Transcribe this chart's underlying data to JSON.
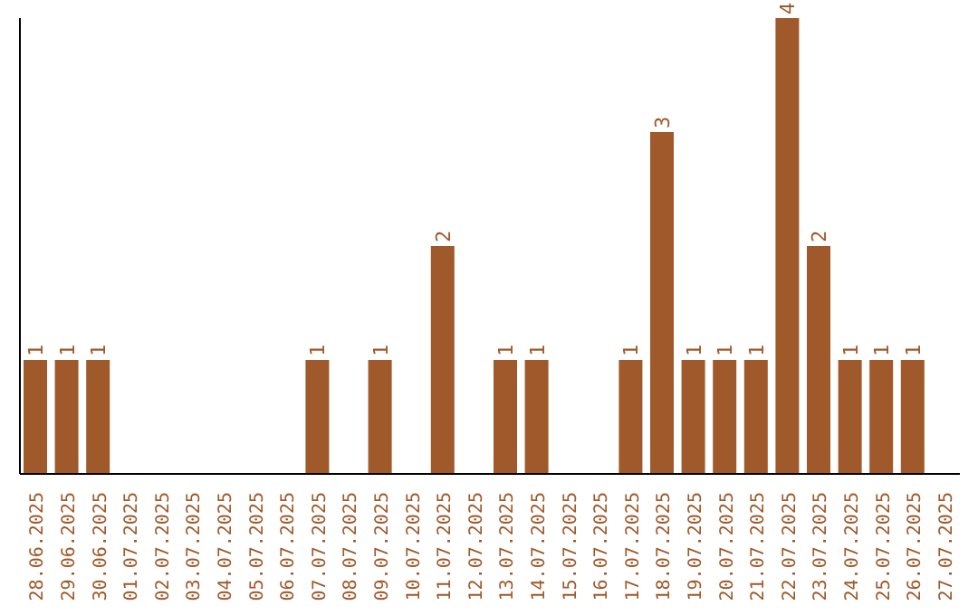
{
  "chart_data": {
    "type": "bar",
    "categories": [
      "28.06.2025",
      "29.06.2025",
      "30.06.2025",
      "01.07.2025",
      "02.07.2025",
      "03.07.2025",
      "04.07.2025",
      "05.07.2025",
      "06.07.2025",
      "07.07.2025",
      "08.07.2025",
      "09.07.2025",
      "10.07.2025",
      "11.07.2025",
      "12.07.2025",
      "13.07.2025",
      "14.07.2025",
      "15.07.2025",
      "16.07.2025",
      "17.07.2025",
      "18.07.2025",
      "19.07.2025",
      "20.07.2025",
      "21.07.2025",
      "22.07.2025",
      "23.07.2025",
      "24.07.2025",
      "25.07.2025",
      "26.07.2025",
      "27.07.2025"
    ],
    "values": [
      1,
      1,
      1,
      0,
      0,
      0,
      0,
      0,
      0,
      1,
      0,
      1,
      0,
      2,
      0,
      1,
      1,
      0,
      0,
      1,
      3,
      1,
      1,
      1,
      4,
      2,
      1,
      1,
      1,
      0
    ],
    "value_labels": [
      "1",
      "1",
      "1",
      null,
      null,
      null,
      null,
      null,
      null,
      "1",
      null,
      "1",
      null,
      "2",
      null,
      "1",
      "1",
      null,
      null,
      "1",
      "3",
      "1",
      "1",
      "1",
      "4",
      "2",
      "1",
      "1",
      "1",
      null
    ],
    "color": "#a0592a",
    "grid": false,
    "legend": false
  }
}
